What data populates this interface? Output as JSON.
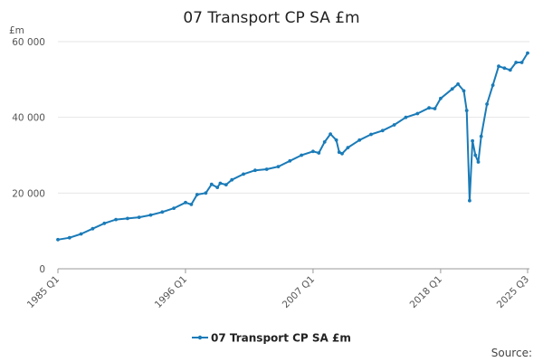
{
  "chart_data": {
    "type": "line",
    "title": "07 Transport CP SA £m",
    "ylabel": "£m",
    "xlabel": "",
    "ylim": [
      0,
      60000
    ],
    "yticks": [
      0,
      20000,
      40000,
      60000
    ],
    "ytick_labels": [
      "0",
      "20 000",
      "40 000",
      "60 000"
    ],
    "xticks": [
      "1985 Q1",
      "1996 Q1",
      "2007 Q1",
      "2018 Q1",
      "2025 Q3"
    ],
    "legend_position": "bottom-center",
    "grid": true,
    "credit": "Source:",
    "series": [
      {
        "name": "07 Transport CP SA £m",
        "color": "#1a7bb8",
        "points": [
          [
            "1985 Q1",
            7700
          ],
          [
            "1986 Q1",
            8200
          ],
          [
            "1987 Q1",
            9200
          ],
          [
            "1988 Q1",
            10600
          ],
          [
            "1989 Q1",
            12000
          ],
          [
            "1990 Q1",
            13000
          ],
          [
            "1991 Q1",
            13300
          ],
          [
            "1992 Q1",
            13600
          ],
          [
            "1993 Q1",
            14200
          ],
          [
            "1994 Q1",
            15000
          ],
          [
            "1995 Q1",
            16000
          ],
          [
            "1996 Q1",
            17500
          ],
          [
            "1996 Q3",
            17000
          ],
          [
            "1997 Q1",
            19600
          ],
          [
            "1997 Q4",
            20000
          ],
          [
            "1998 Q2",
            22300
          ],
          [
            "1998 Q4",
            21500
          ],
          [
            "1999 Q1",
            22600
          ],
          [
            "1999 Q3",
            22200
          ],
          [
            "2000 Q1",
            23500
          ],
          [
            "2001 Q1",
            25000
          ],
          [
            "2002 Q1",
            26000
          ],
          [
            "2003 Q1",
            26300
          ],
          [
            "2004 Q1",
            27000
          ],
          [
            "2005 Q1",
            28500
          ],
          [
            "2006 Q1",
            30000
          ],
          [
            "2007 Q1",
            31000
          ],
          [
            "2007 Q3",
            30600
          ],
          [
            "2008 Q1",
            33500
          ],
          [
            "2008 Q3",
            35600
          ],
          [
            "2009 Q1",
            34000
          ],
          [
            "2009 Q2",
            30800
          ],
          [
            "2009 Q3",
            30400
          ],
          [
            "2010 Q1",
            32000
          ],
          [
            "2011 Q1",
            34000
          ],
          [
            "2012 Q1",
            35500
          ],
          [
            "2013 Q1",
            36500
          ],
          [
            "2014 Q1",
            38000
          ],
          [
            "2015 Q1",
            40000
          ],
          [
            "2016 Q1",
            41000
          ],
          [
            "2017 Q1",
            42500
          ],
          [
            "2017 Q3",
            42300
          ],
          [
            "2018 Q1",
            45000
          ],
          [
            "2019 Q1",
            47500
          ],
          [
            "2019 Q3",
            48800
          ],
          [
            "2020 Q1",
            47000
          ],
          [
            "2020 Q2",
            41800
          ],
          [
            "2020 Q3",
            18000
          ],
          [
            "2020 Q4",
            33800
          ],
          [
            "2021 Q1",
            30000
          ],
          [
            "2021 Q2",
            28200
          ],
          [
            "2021 Q3",
            35000
          ],
          [
            "2022 Q1",
            43500
          ],
          [
            "2022 Q3",
            48500
          ],
          [
            "2023 Q1",
            53500
          ],
          [
            "2023 Q3",
            53000
          ],
          [
            "2024 Q1",
            52500
          ],
          [
            "2024 Q3",
            54500
          ],
          [
            "2025 Q1",
            54500
          ],
          [
            "2025 Q3",
            57000
          ]
        ]
      }
    ]
  }
}
